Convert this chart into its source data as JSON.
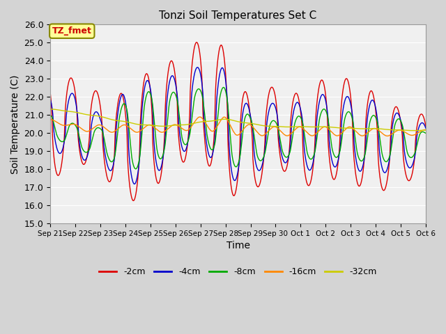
{
  "title": "Tonzi Soil Temperatures Set C",
  "xlabel": "Time",
  "ylabel": "Soil Temperature (C)",
  "ylim": [
    15.0,
    26.0
  ],
  "yticks": [
    15.0,
    16.0,
    17.0,
    18.0,
    19.0,
    20.0,
    21.0,
    22.0,
    23.0,
    24.0,
    25.0,
    26.0
  ],
  "xtick_labels": [
    "Sep 21",
    "Sep 22",
    "Sep 23",
    "Sep 24",
    "Sep 25",
    "Sep 26",
    "Sep 27",
    "Sep 28",
    "Sep 29",
    "Sep 30",
    "Oct 1",
    "Oct 2",
    "Oct 3",
    "Oct 4",
    "Oct 5",
    "Oct 6"
  ],
  "colors": {
    "-2cm": "#dd0000",
    "-4cm": "#0000cc",
    "-8cm": "#00aa00",
    "-16cm": "#ff8800",
    "-32cm": "#cccc00"
  },
  "annotation_text": "TZ_fmet",
  "annotation_color": "#cc0000",
  "annotation_bg": "#ffff99",
  "annotation_border": "#888800",
  "fig_facecolor": "#d4d4d4",
  "plot_facecolor": "#f0f0f0",
  "grid_color": "#ffffff",
  "spine_color": "#999999"
}
